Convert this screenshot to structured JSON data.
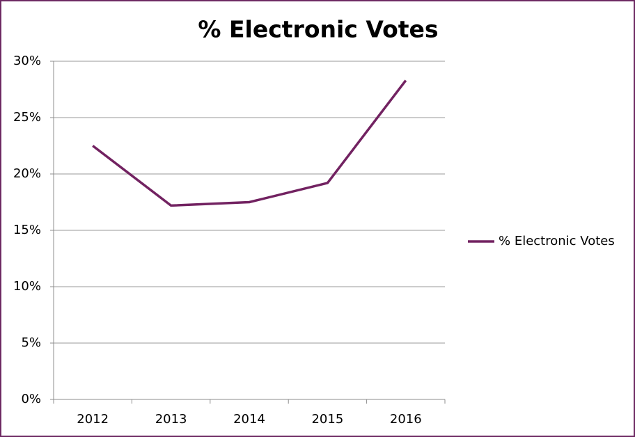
{
  "chart_data": {
    "type": "line",
    "title": "% Electronic Votes",
    "categories": [
      "2012",
      "2013",
      "2014",
      "2015",
      "2016"
    ],
    "series": [
      {
        "name": "% Electronic Votes",
        "color": "#722261",
        "values": [
          22.5,
          17.2,
          17.5,
          19.2,
          28.3
        ]
      }
    ],
    "ylim": [
      0,
      30
    ],
    "yticks": [
      {
        "value": 0,
        "label": "0%"
      },
      {
        "value": 5,
        "label": "5%"
      },
      {
        "value": 10,
        "label": "10%"
      },
      {
        "value": 15,
        "label": "15%"
      },
      {
        "value": 20,
        "label": "20%"
      },
      {
        "value": 25,
        "label": "25%"
      },
      {
        "value": 30,
        "label": "30%"
      }
    ],
    "grid": true,
    "legend": "right"
  }
}
